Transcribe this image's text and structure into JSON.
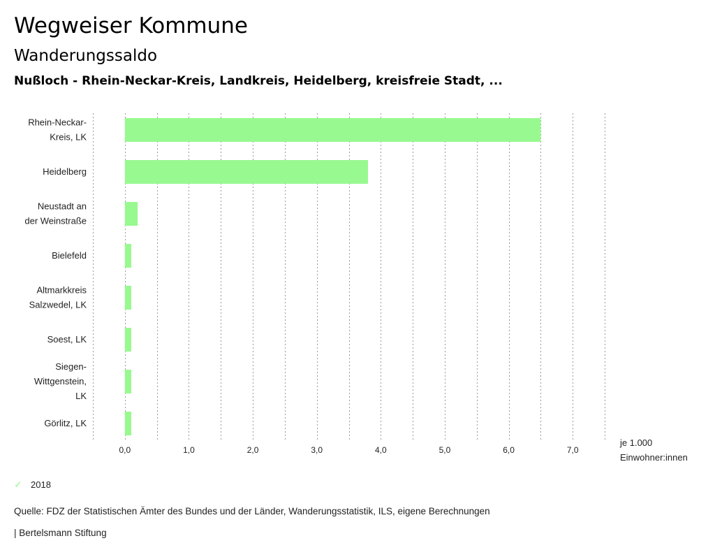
{
  "header": {
    "app_title": "Wegweiser Kommune",
    "subtitle": "Wanderungssaldo",
    "region": "Nußloch - Rhein-Neckar-Kreis, Landkreis, Heidelberg, kreisfreie Stadt, ..."
  },
  "chart_data": {
    "type": "bar",
    "orientation": "horizontal",
    "categories": [
      [
        "Rhein-Neckar-",
        "Kreis, LK"
      ],
      [
        "Heidelberg"
      ],
      [
        "Neustadt an",
        "der Weinstraße"
      ],
      [
        "Bielefeld"
      ],
      [
        "Altmarkkreis",
        "Salzwedel, LK"
      ],
      [
        "Soest, LK"
      ],
      [
        "Siegen-",
        "Wittgenstein,",
        "LK"
      ],
      [
        "Görlitz, LK"
      ]
    ],
    "series": [
      {
        "name": "2018",
        "color": "#98f990",
        "values": [
          6.5,
          3.8,
          0.2,
          0.1,
          0.1,
          0.1,
          0.1,
          0.1
        ]
      }
    ],
    "xlim": [
      -0.5,
      7.5
    ],
    "xticks": [
      0,
      1,
      2,
      3,
      4,
      5,
      6,
      7
    ],
    "xtick_labels": [
      "0,0",
      "1,0",
      "2,0",
      "3,0",
      "4,0",
      "5,0",
      "6,0",
      "7,0"
    ],
    "xlabel": [
      "je 1.000",
      "Einwohner:innen"
    ],
    "grid": "vertical-dotted"
  },
  "legend": {
    "items": [
      {
        "label": "2018",
        "color": "#98f990",
        "icon": "check-icon"
      }
    ]
  },
  "footer": {
    "source": "Quelle: FDZ der Statistischen Ämter des Bundes und der Länder, Wanderungsstatistik, ILS, eigene Berechnungen",
    "brand": "| Bertelsmann Stiftung"
  }
}
